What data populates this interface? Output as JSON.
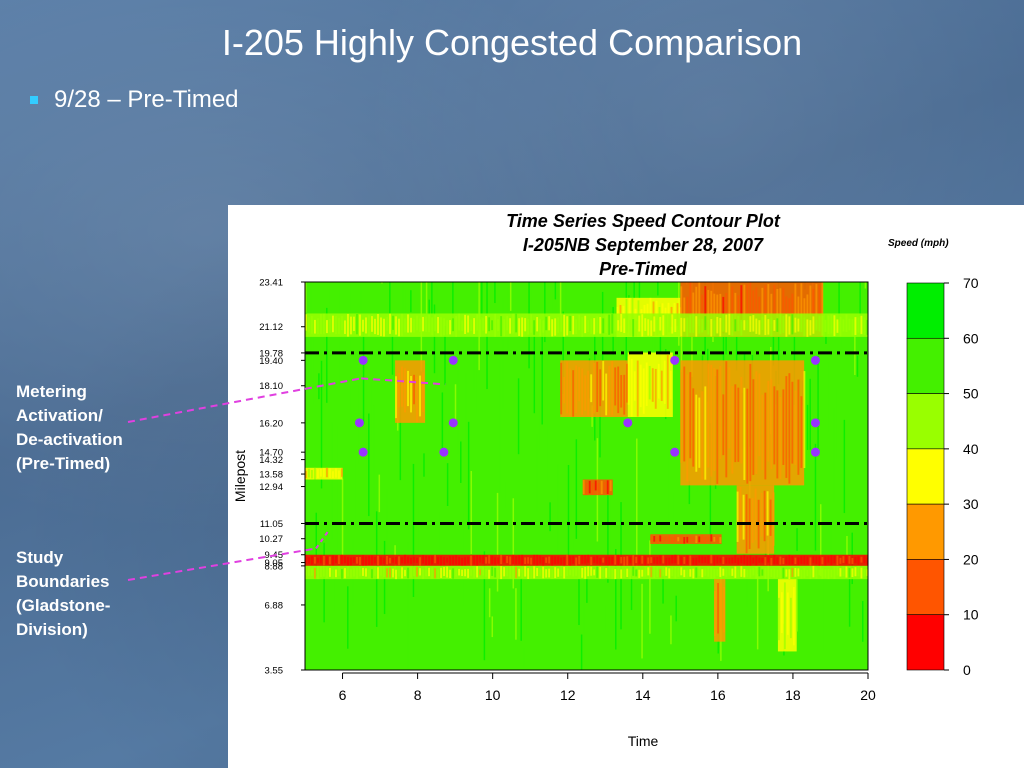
{
  "slide": {
    "title": "I-205 Highly Congested Comparison",
    "bullet": "9/28 – Pre-Timed"
  },
  "annotations": {
    "metering": [
      "Metering",
      "Activation/",
      "De-activation",
      "(Pre-Timed)"
    ],
    "study": [
      "Study",
      "Boundaries",
      "(Gladstone-",
      "Division)"
    ]
  },
  "colors": {
    "bullet": "#33ccff",
    "callout_line": "#e040e0",
    "marker": "#9933ff",
    "boundary_line": "#000000"
  },
  "chart_data": {
    "type": "heatmap",
    "title": [
      "Time Series Speed Contour Plot",
      "I-205NB September 28, 2007",
      "Pre-Timed"
    ],
    "xlabel": "Time",
    "ylabel": "Milepost",
    "xlim": [
      5,
      20
    ],
    "x_ticks": [
      6,
      8,
      10,
      12,
      14,
      16,
      18,
      20
    ],
    "ylim": [
      3.55,
      23.41
    ],
    "y_ticks": [
      "23.41",
      "21.12",
      "19.78",
      "19.40",
      "18.10",
      "16.20",
      "14.70",
      "14.32",
      "13.58",
      "12.94",
      "11.05",
      "10.27",
      "9.45",
      "9.05",
      "8.88",
      "6.88",
      "3.55"
    ],
    "legend": {
      "title": "Speed (mph)",
      "placement": "right",
      "ticks": [
        "70",
        "60",
        "50",
        "40",
        "30",
        "20",
        "10",
        "0"
      ],
      "bands": [
        {
          "from": 60,
          "to": 70,
          "color": "#00ee00"
        },
        {
          "from": 50,
          "to": 60,
          "color": "#44f000"
        },
        {
          "from": 40,
          "to": 50,
          "color": "#99ff00"
        },
        {
          "from": 30,
          "to": 40,
          "color": "#ffff00"
        },
        {
          "from": 20,
          "to": 30,
          "color": "#ff9900"
        },
        {
          "from": 10,
          "to": 20,
          "color": "#ff5500"
        },
        {
          "from": 0,
          "to": 10,
          "color": "#ff0000"
        }
      ]
    },
    "study_boundaries": [
      19.78,
      11.05
    ],
    "metering_points": [
      {
        "time": 6.55,
        "milepost": 19.4
      },
      {
        "time": 6.45,
        "milepost": 16.2
      },
      {
        "time": 6.55,
        "milepost": 14.7
      },
      {
        "time": 8.95,
        "milepost": 19.4
      },
      {
        "time": 8.95,
        "milepost": 16.2
      },
      {
        "time": 8.7,
        "milepost": 14.7
      },
      {
        "time": 13.6,
        "milepost": 16.2
      },
      {
        "time": 14.85,
        "milepost": 19.4
      },
      {
        "time": 14.85,
        "milepost": 14.7
      },
      {
        "time": 18.6,
        "milepost": 19.4
      },
      {
        "time": 18.6,
        "milepost": 16.2
      },
      {
        "time": 18.6,
        "milepost": 14.7
      }
    ],
    "congestion_regions": [
      {
        "t": [
          5.0,
          20.0
        ],
        "mp": [
          8.88,
          9.45
        ],
        "speed": 5
      },
      {
        "t": [
          5.0,
          20.0
        ],
        "mp": [
          8.2,
          8.88
        ],
        "speed": 40
      },
      {
        "t": [
          13.3,
          15.0
        ],
        "mp": [
          20.6,
          22.6
        ],
        "speed": 35
      },
      {
        "t": [
          15.0,
          18.8
        ],
        "mp": [
          20.6,
          23.41
        ],
        "speed": 18
      },
      {
        "t": [
          11.8,
          13.6
        ],
        "mp": [
          16.5,
          19.4
        ],
        "speed": 22
      },
      {
        "t": [
          13.6,
          14.8
        ],
        "mp": [
          16.5,
          19.8
        ],
        "speed": 32
      },
      {
        "t": [
          15.0,
          18.3
        ],
        "mp": [
          13.0,
          19.4
        ],
        "speed": 22
      },
      {
        "t": [
          16.5,
          17.5
        ],
        "mp": [
          9.5,
          13.0
        ],
        "speed": 25
      },
      {
        "t": [
          12.4,
          13.2
        ],
        "mp": [
          12.5,
          13.3
        ],
        "speed": 12
      },
      {
        "t": [
          14.2,
          16.1
        ],
        "mp": [
          10.0,
          10.5
        ],
        "speed": 15
      },
      {
        "t": [
          15.9,
          16.2
        ],
        "mp": [
          5.0,
          8.2
        ],
        "speed": 28
      },
      {
        "t": [
          17.6,
          18.1
        ],
        "mp": [
          4.5,
          8.2
        ],
        "speed": 35
      },
      {
        "t": [
          7.4,
          8.2
        ],
        "mp": [
          16.2,
          19.4
        ],
        "speed": 28
      },
      {
        "t": [
          5.0,
          6.0
        ],
        "mp": [
          13.3,
          13.9
        ],
        "speed": 35
      },
      {
        "t": [
          5.0,
          20.0
        ],
        "mp": [
          20.6,
          21.8
        ],
        "speed": 42
      }
    ]
  }
}
